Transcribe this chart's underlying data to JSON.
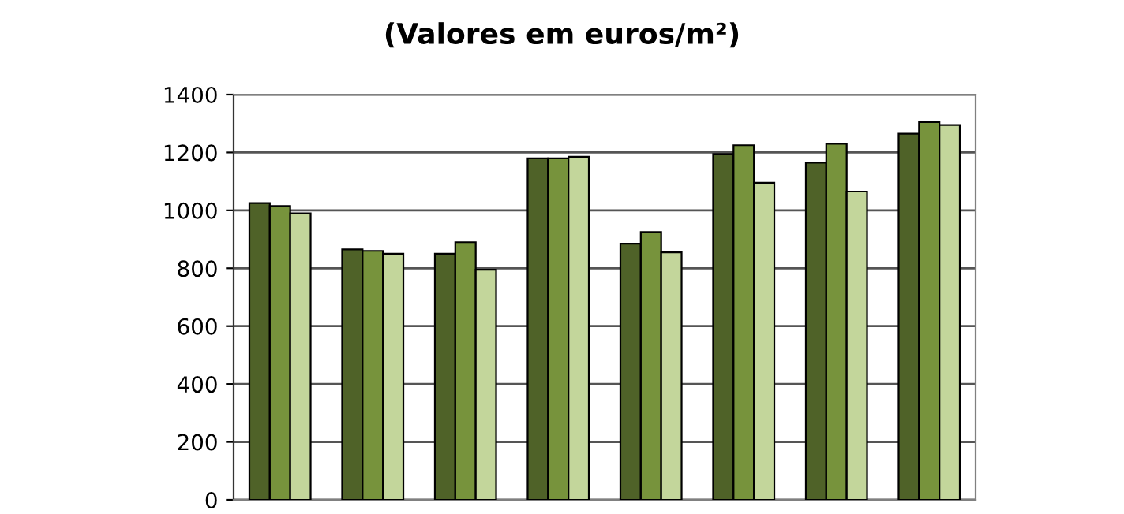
{
  "chart_data": {
    "type": "bar",
    "title": "(Valores em euros/m²)",
    "categories": [
      null,
      null,
      null,
      null,
      null,
      null,
      null,
      null
    ],
    "series": [
      {
        "color": "#4f6228",
        "values": [
          1025,
          865,
          850,
          1180,
          885,
          1195,
          1165,
          1265
        ]
      },
      {
        "color": "#77933c",
        "values": [
          1015,
          860,
          890,
          1180,
          925,
          1225,
          1230,
          1305
        ]
      },
      {
        "color": "#c3d69b",
        "values": [
          990,
          850,
          795,
          1185,
          855,
          1095,
          1065,
          1295
        ]
      }
    ],
    "ylim": [
      0,
      1400
    ],
    "yticks": [
      0,
      200,
      400,
      600,
      800,
      1000,
      1200,
      1400
    ],
    "grid": "y",
    "legend": false
  }
}
